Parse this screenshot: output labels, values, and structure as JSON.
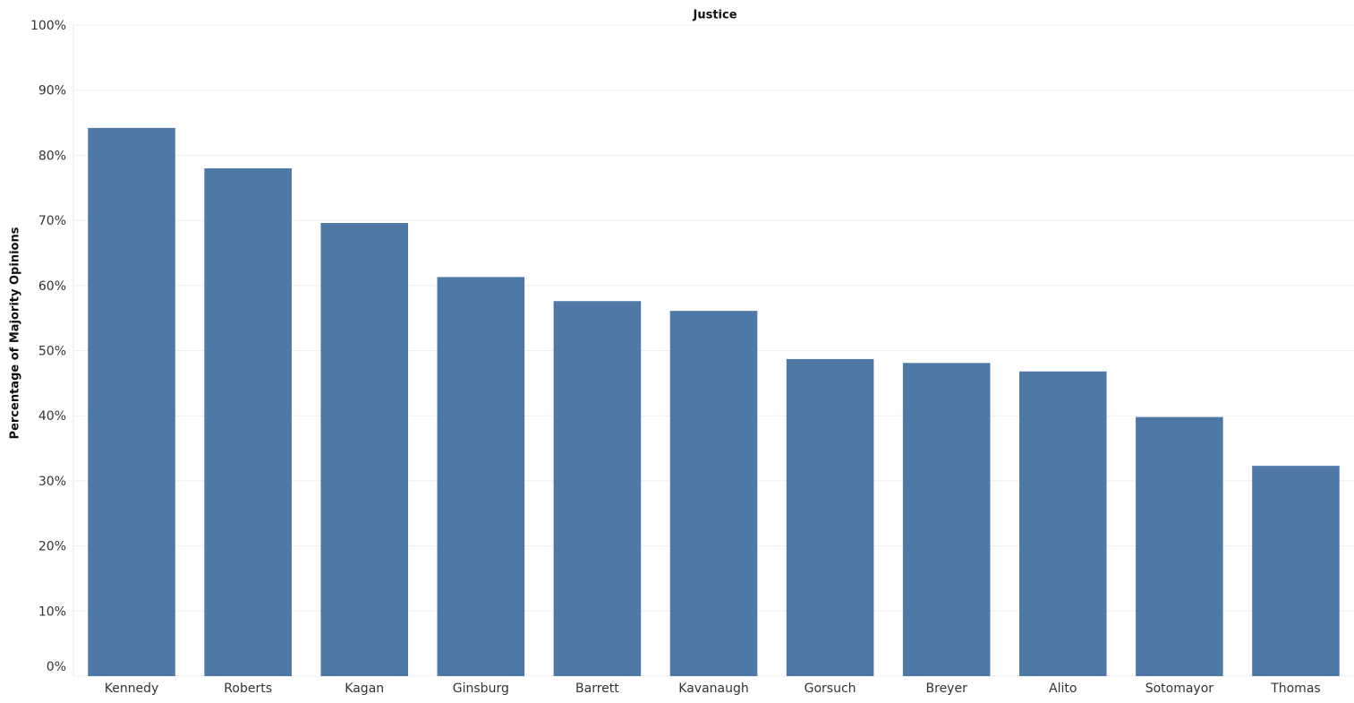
{
  "chart_data": {
    "type": "bar",
    "title": "Justice",
    "y_label": "Percentage of Majority Opinions",
    "categories": [
      "Kennedy",
      "Roberts",
      "Kagan",
      "Ginsburg",
      "Barrett",
      "Kavanaugh",
      "Gorsuch",
      "Breyer",
      "Alito",
      "Sotomayor",
      "Thomas"
    ],
    "values": [
      84.2,
      78.0,
      69.6,
      61.3,
      57.6,
      56.1,
      48.7,
      48.1,
      46.8,
      39.8,
      32.3
    ],
    "color": "#4e79a7",
    "ylim": [
      0,
      100
    ],
    "yticks": [
      {
        "value": 0,
        "label": "0%"
      },
      {
        "value": 10,
        "label": "10%"
      },
      {
        "value": 20,
        "label": "20%"
      },
      {
        "value": 30,
        "label": "30%"
      },
      {
        "value": 40,
        "label": "40%"
      },
      {
        "value": 50,
        "label": "50%"
      },
      {
        "value": 60,
        "label": "60%"
      },
      {
        "value": 70,
        "label": "70%"
      },
      {
        "value": 80,
        "label": "80%"
      },
      {
        "value": 90,
        "label": "90%"
      },
      {
        "value": 100,
        "label": "100%"
      }
    ],
    "grid": true
  }
}
